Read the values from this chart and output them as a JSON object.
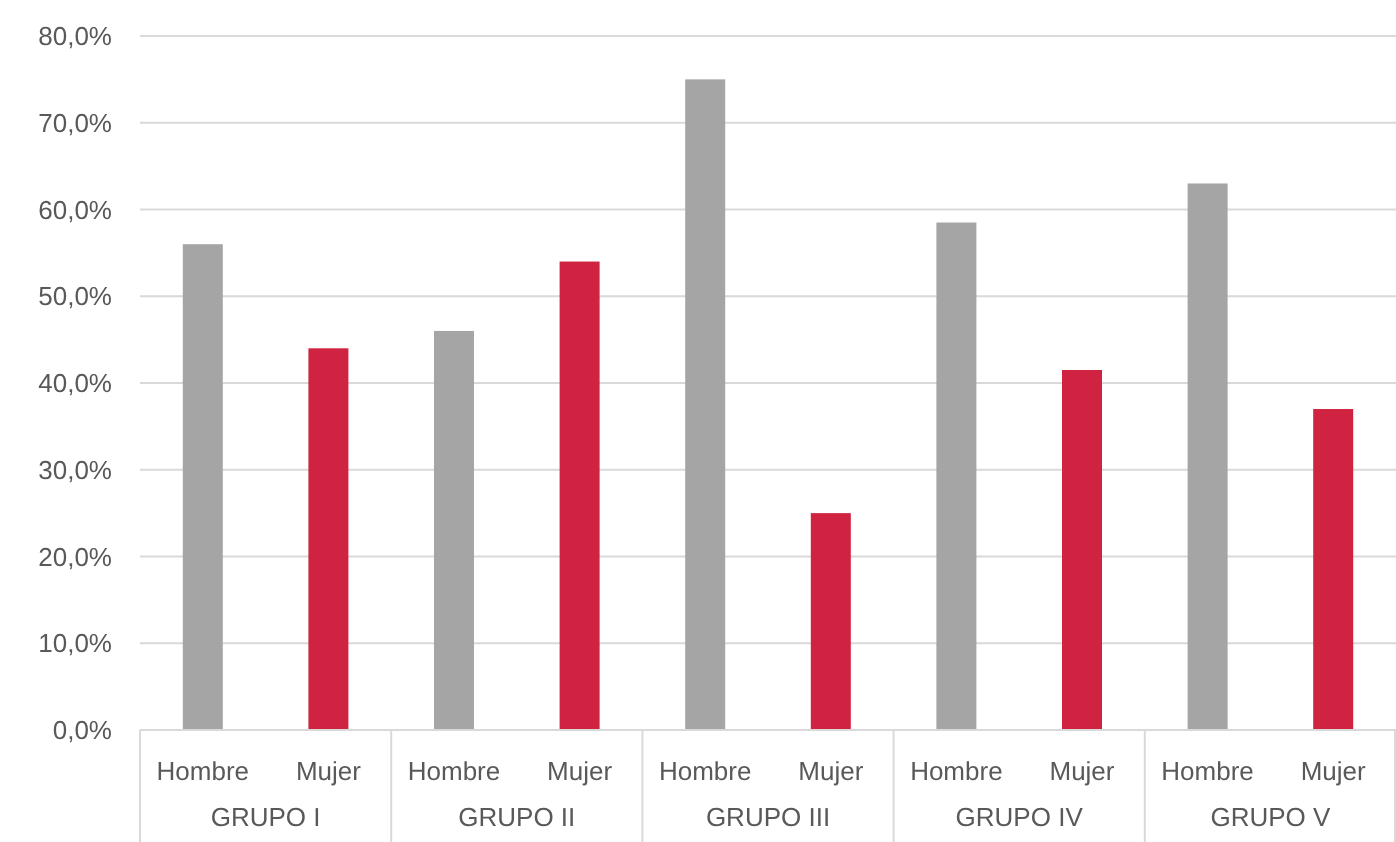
{
  "chart_data": {
    "type": "bar",
    "categories": [
      "GRUPO I",
      "GRUPO II",
      "GRUPO III",
      "GRUPO IV",
      "GRUPO V"
    ],
    "series": [
      {
        "name": "Hombre",
        "color": "#a5a5a5",
        "values": [
          56,
          46,
          75,
          58.5,
          63
        ]
      },
      {
        "name": "Mujer",
        "color": "#d02342",
        "values": [
          44,
          54,
          25,
          41.5,
          37
        ]
      }
    ],
    "ylim": [
      0,
      80
    ],
    "yticks": [
      {
        "value": 0,
        "label": "0,0%"
      },
      {
        "value": 10,
        "label": "10,0%"
      },
      {
        "value": 20,
        "label": "20,0%"
      },
      {
        "value": 30,
        "label": "30,0%"
      },
      {
        "value": 40,
        "label": "40,0%"
      },
      {
        "value": 50,
        "label": "50,0%"
      },
      {
        "value": 60,
        "label": "60,0%"
      },
      {
        "value": 70,
        "label": "70,0%"
      },
      {
        "value": 80,
        "label": "80,0%"
      }
    ],
    "grid": "y"
  }
}
